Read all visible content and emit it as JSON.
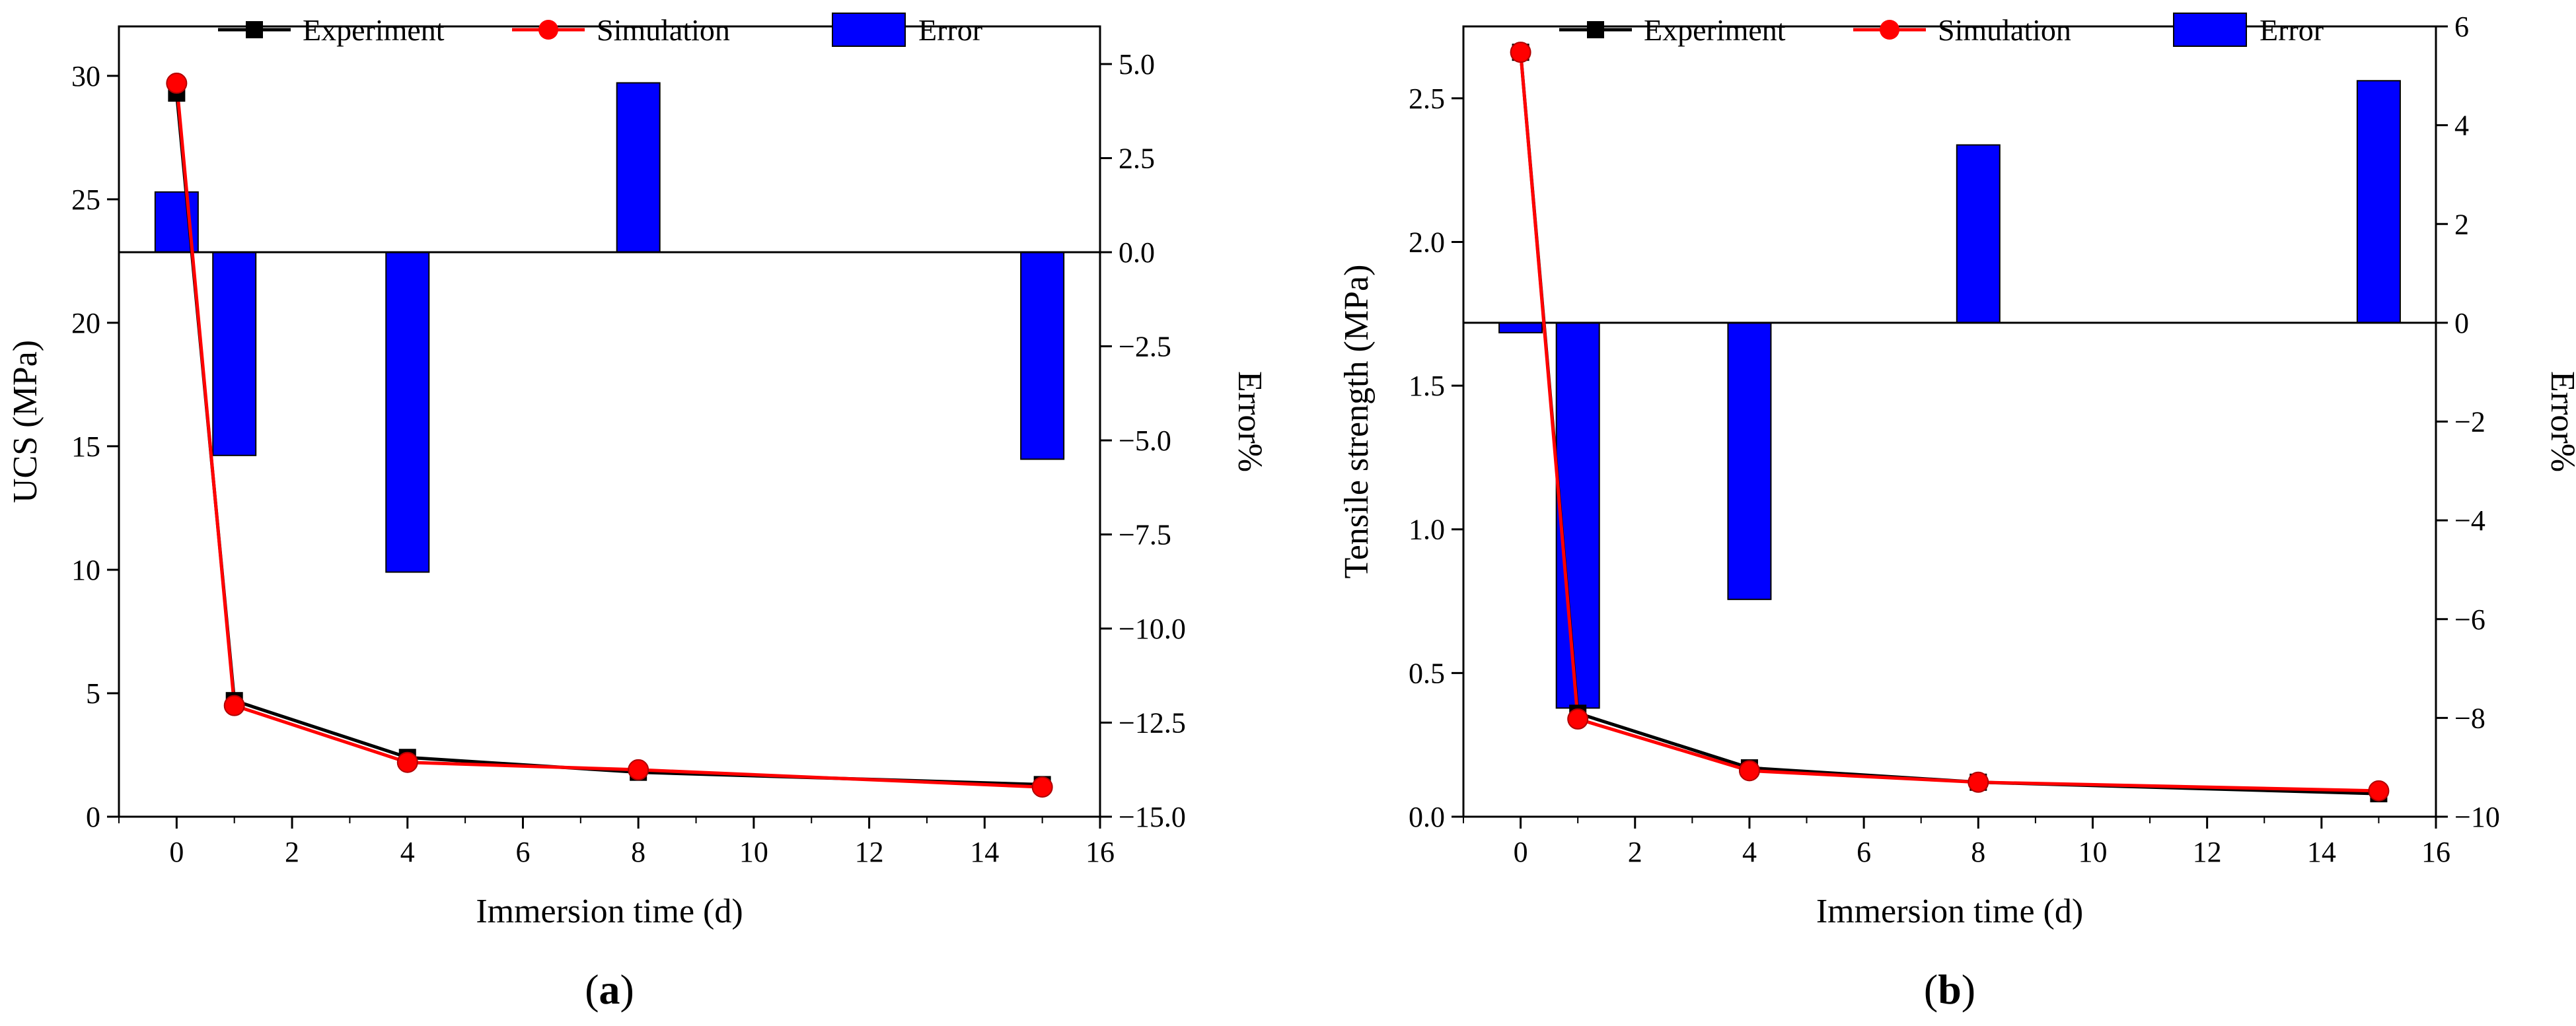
{
  "colors": {
    "experiment": "#000000",
    "simulation": "#ff0000",
    "error_bar": "#0000ff",
    "bar_edge": "#000000"
  },
  "chart_data": [
    {
      "type": "line+bar",
      "panel_label": "a",
      "xlabel": "Immersion time (d)",
      "ylabel": "UCS (MPa)",
      "y2label": "Error%",
      "xlim": [
        -1,
        16
      ],
      "xticks": [
        "0",
        "2",
        "4",
        "6",
        "8",
        "10",
        "12",
        "14",
        "16"
      ],
      "ylim": [
        0,
        32
      ],
      "yticks": [
        "0",
        "5",
        "10",
        "15",
        "20",
        "25",
        "30"
      ],
      "y2lim": [
        -15,
        6
      ],
      "y2ticks": [
        "−15.0",
        "−12.5",
        "−10.0",
        "−7.5",
        "−5.0",
        "−2.5",
        "0.0",
        "2.5",
        "5.0"
      ],
      "legend": [
        "Experiment",
        "Simulation",
        "Error"
      ],
      "x": [
        0,
        1,
        4,
        8,
        15
      ],
      "series": [
        {
          "name": "Experiment",
          "values": [
            29.3,
            4.7,
            2.4,
            1.8,
            1.3
          ]
        },
        {
          "name": "Simulation",
          "values": [
            29.7,
            4.5,
            2.2,
            1.9,
            1.2
          ]
        },
        {
          "name": "Error",
          "values": [
            1.6,
            -5.4,
            -8.5,
            4.5,
            -5.5
          ]
        }
      ]
    },
    {
      "type": "line+bar",
      "panel_label": "b",
      "xlabel": "Immersion time (d)",
      "ylabel": "Tensile strength (MPa)",
      "y2label": "Error%",
      "xlim": [
        -1,
        16
      ],
      "xticks": [
        "0",
        "2",
        "4",
        "6",
        "8",
        "10",
        "12",
        "14",
        "16"
      ],
      "ylim": [
        0,
        2.75
      ],
      "yticks": [
        "0.0",
        "0.5",
        "1.0",
        "1.5",
        "2.0",
        "2.5"
      ],
      "y2lim": [
        -10,
        6
      ],
      "y2ticks": [
        "−10",
        "−8",
        "−6",
        "−4",
        "−2",
        "0",
        "2",
        "4",
        "6"
      ],
      "legend": [
        "Experiment",
        "Simulation",
        "Error"
      ],
      "x": [
        0,
        1,
        4,
        8,
        15
      ],
      "series": [
        {
          "name": "Experiment",
          "values": [
            2.66,
            0.36,
            0.17,
            0.12,
            0.08
          ]
        },
        {
          "name": "Simulation",
          "values": [
            2.66,
            0.34,
            0.16,
            0.12,
            0.09
          ]
        },
        {
          "name": "Error",
          "values": [
            -0.2,
            -7.8,
            -5.6,
            3.6,
            4.9
          ]
        }
      ]
    }
  ]
}
